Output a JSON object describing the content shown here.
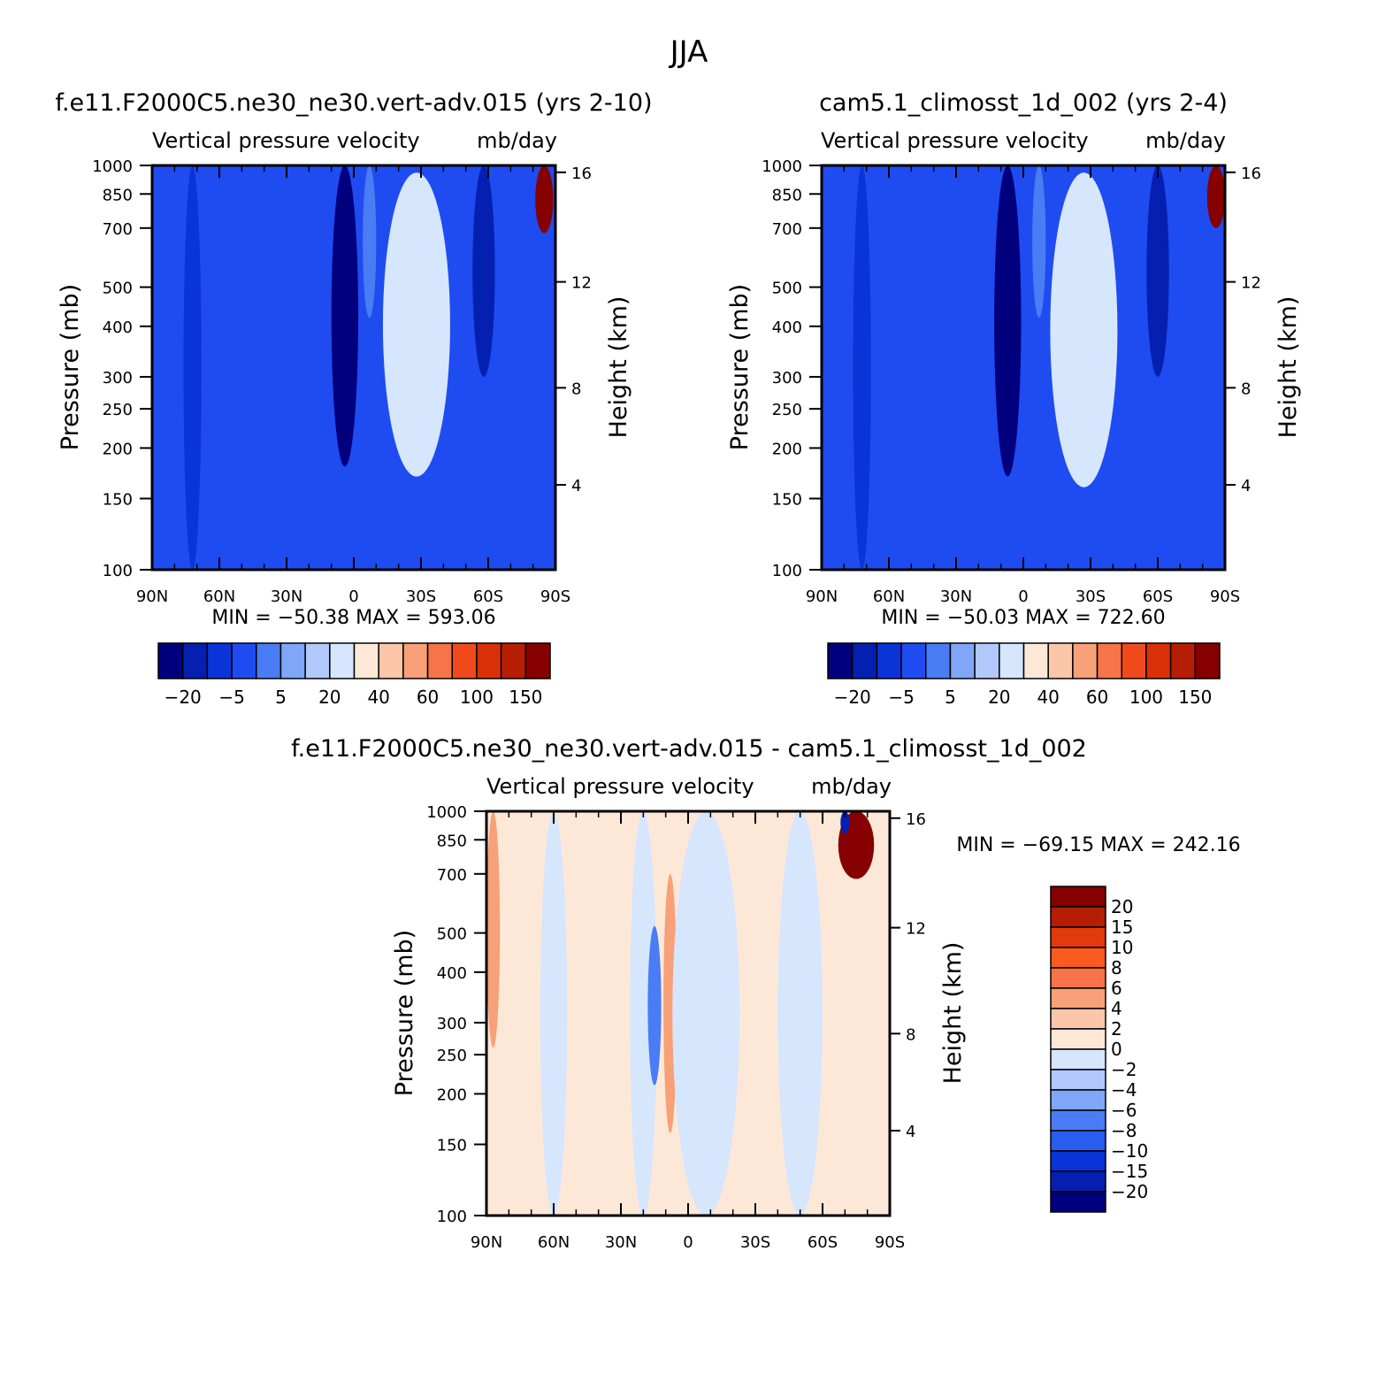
{
  "figure": {
    "title": "JJA"
  },
  "colors": {
    "full_fill": [
      "#00007f",
      "#0520b0",
      "#0a34d8",
      "#1f4cf0",
      "#4a7cf5",
      "#80a6f8",
      "#b0c8fb",
      "#d6e6fd",
      "#fde8d8",
      "#fbc7a8",
      "#f8a078",
      "#f77448",
      "#f04a1c",
      "#d93008",
      "#b51e04",
      "#860000"
    ],
    "diff_fill": [
      "#00007f",
      "#0520b0",
      "#0a34d8",
      "#2a5cf0",
      "#4a7cf5",
      "#80a6f8",
      "#b0c8fb",
      "#d6e6fd",
      "#fde8d8",
      "#fbc7a8",
      "#f8a078",
      "#f77448",
      "#fa5a20",
      "#e23a0c",
      "#b51e04",
      "#860000"
    ]
  },
  "chart_data": [
    {
      "type": "heatmap",
      "title": "f.e11.F2000C5.ne30_ne30.vert-adv.015 (yrs 2-10)",
      "subtitle": "Vertical pressure velocity",
      "units": "mb/day",
      "xlabel": "",
      "ylabel": "Pressure (mb)",
      "y2label": "Height (km)",
      "x_ticks": [
        "90N",
        "60N",
        "30N",
        "0",
        "30S",
        "60S",
        "90S"
      ],
      "x_range": [
        90,
        -90
      ],
      "y_ticks": [
        100,
        150,
        200,
        250,
        300,
        400,
        500,
        700,
        850,
        1000
      ],
      "y_range": [
        1000,
        100
      ],
      "y2_ticks": [
        16,
        12,
        8,
        4
      ],
      "min": -50.38,
      "max": 593.06,
      "stats_label": "MIN = −50.38   MAX = 593.06",
      "colorbar_labels": [
        "−20",
        "−5",
        "5",
        "20",
        "40",
        "60",
        "100",
        "150"
      ],
      "colorbar_levels": [
        -25,
        -20,
        -15,
        -10,
        -5,
        0,
        5,
        10,
        20,
        30,
        40,
        50,
        60,
        80,
        100,
        150
      ],
      "field": {
        "background_level": -10,
        "features": [
          {
            "lat": 72,
            "lat_width": 4,
            "level": -15,
            "p_top": 100,
            "p_bottom": 1000
          },
          {
            "lat": -7,
            "lat_width": 3,
            "level": -5,
            "p_top": 420,
            "p_bottom": 1000
          },
          {
            "lat": 4,
            "lat_width": 6,
            "level": -25,
            "p_top": 180,
            "p_bottom": 1000
          },
          {
            "lat": -28,
            "lat_width": 15,
            "level": 10,
            "p_top": 170,
            "p_bottom": 960
          },
          {
            "lat": -58,
            "lat_width": 5,
            "level": -20,
            "p_top": 300,
            "p_bottom": 1000
          },
          {
            "lat": -85,
            "lat_width": 4,
            "level": 150,
            "p_top": 680,
            "p_bottom": 1000
          }
        ]
      }
    },
    {
      "type": "heatmap",
      "title": "cam5.1_climosst_1d_002 (yrs 2-4)",
      "subtitle": "Vertical pressure velocity",
      "units": "mb/day",
      "xlabel": "",
      "ylabel": "Pressure (mb)",
      "y2label": "Height (km)",
      "x_ticks": [
        "90N",
        "60N",
        "30N",
        "0",
        "30S",
        "60S",
        "90S"
      ],
      "x_range": [
        90,
        -90
      ],
      "y_ticks": [
        100,
        150,
        200,
        250,
        300,
        400,
        500,
        700,
        850,
        1000
      ],
      "y_range": [
        1000,
        100
      ],
      "y2_ticks": [
        16,
        12,
        8,
        4
      ],
      "min": -50.03,
      "max": 722.6,
      "stats_label": "MIN = −50.03   MAX = 722.60",
      "colorbar_labels": [
        "−20",
        "−5",
        "5",
        "20",
        "40",
        "60",
        "100",
        "150"
      ],
      "colorbar_levels": [
        -25,
        -20,
        -15,
        -10,
        -5,
        0,
        5,
        10,
        20,
        30,
        40,
        50,
        60,
        80,
        100,
        150
      ],
      "field": {
        "background_level": -10,
        "features": [
          {
            "lat": 72,
            "lat_width": 4,
            "level": -15,
            "p_top": 100,
            "p_bottom": 1000
          },
          {
            "lat": -7,
            "lat_width": 3,
            "level": -5,
            "p_top": 420,
            "p_bottom": 1000
          },
          {
            "lat": 7,
            "lat_width": 6,
            "level": -25,
            "p_top": 170,
            "p_bottom": 1000
          },
          {
            "lat": -27,
            "lat_width": 15,
            "level": 10,
            "p_top": 160,
            "p_bottom": 960
          },
          {
            "lat": -60,
            "lat_width": 5,
            "level": -20,
            "p_top": 300,
            "p_bottom": 1000
          },
          {
            "lat": -86,
            "lat_width": 4,
            "level": 150,
            "p_top": 700,
            "p_bottom": 1000
          }
        ]
      }
    },
    {
      "type": "heatmap",
      "title": "f.e11.F2000C5.ne30_ne30.vert-adv.015 - cam5.1_climosst_1d_002",
      "subtitle": "Vertical pressure velocity",
      "units": "mb/day",
      "xlabel": "",
      "ylabel": "Pressure (mb)",
      "y2label": "Height (km)",
      "x_ticks": [
        "90N",
        "60N",
        "30N",
        "0",
        "30S",
        "60S",
        "90S"
      ],
      "x_range": [
        90,
        -90
      ],
      "y_ticks": [
        100,
        150,
        200,
        250,
        300,
        400,
        500,
        700,
        850,
        1000
      ],
      "y_range": [
        1000,
        100
      ],
      "y2_ticks": [
        16,
        12,
        8,
        4
      ],
      "min": -69.15,
      "max": 242.16,
      "stats_label": "MIN = −69.15   MAX = 242.16",
      "colorbar_labels": [
        "20",
        "15",
        "10",
        "8",
        "6",
        "4",
        "2",
        "0",
        "−2",
        "−4",
        "−6",
        "−8",
        "−10",
        "−15",
        "−20"
      ],
      "colorbar_levels": [
        -25,
        -20,
        -15,
        -10,
        -8,
        -6,
        -4,
        -2,
        0,
        2,
        4,
        6,
        8,
        10,
        15,
        20
      ],
      "field": {
        "background_level": 0,
        "features": [
          {
            "lat": 87,
            "lat_width": 3,
            "level": 4,
            "p_top": 260,
            "p_bottom": 1000
          },
          {
            "lat": 60,
            "lat_width": 6,
            "level": -2,
            "p_top": 100,
            "p_bottom": 1000
          },
          {
            "lat": 20,
            "lat_width": 6,
            "level": -2,
            "p_top": 100,
            "p_bottom": 1000
          },
          {
            "lat": 15,
            "lat_width": 3,
            "level": -8,
            "p_top": 210,
            "p_bottom": 520
          },
          {
            "lat": 8,
            "lat_width": 3,
            "level": 4,
            "p_top": 160,
            "p_bottom": 700
          },
          {
            "lat": -8,
            "lat_width": 15,
            "level": -2,
            "p_top": 100,
            "p_bottom": 1000
          },
          {
            "lat": -50,
            "lat_width": 10,
            "level": -2,
            "p_top": 100,
            "p_bottom": 1000
          },
          {
            "lat": -75,
            "lat_width": 8,
            "level": 20,
            "p_top": 680,
            "p_bottom": 1000
          },
          {
            "lat": -70,
            "lat_width": 2,
            "level": -20,
            "p_top": 880,
            "p_bottom": 1000
          }
        ]
      }
    }
  ]
}
